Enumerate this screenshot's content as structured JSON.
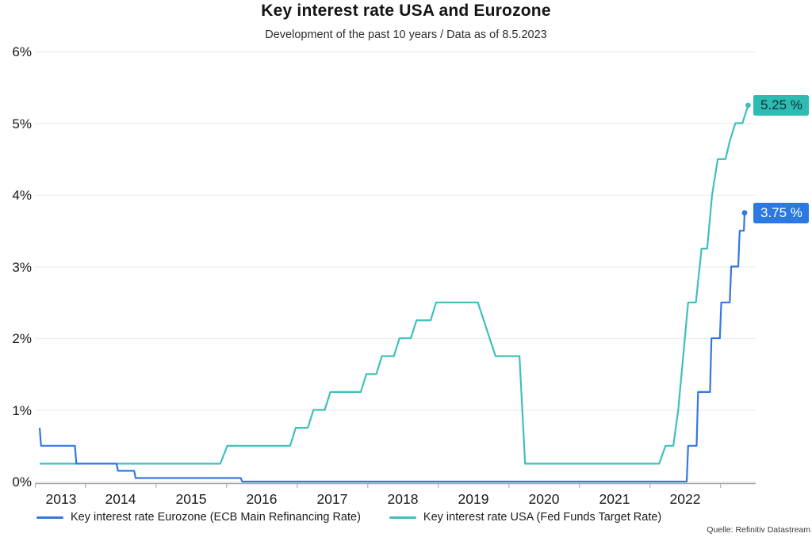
{
  "header": {
    "title": "Key interest rate USA and Eurozone",
    "subtitle": "Development of the past 10 years / Data as of 8.5.2023"
  },
  "source_note": "Quelle: Refinitiv Datastream",
  "chart_data": {
    "type": "line",
    "title": "Key interest rate USA and Eurozone",
    "subtitle": "Development of the past 10 years / Data as of 8.5.2023",
    "grid": "horizontal",
    "legend_position": "bottom",
    "x_axis": {
      "range": [
        2013.35,
        2023.52
      ],
      "tick_years": [
        2014,
        2015,
        2016,
        2017,
        2018,
        2019,
        2020,
        2021,
        2022,
        2023
      ],
      "label_years": [
        2013,
        2014,
        2015,
        2016,
        2017,
        2018,
        2019,
        2020,
        2021,
        2022
      ],
      "labels": [
        "2013",
        "2014",
        "2015",
        "2016",
        "2017",
        "2018",
        "2019",
        "2020",
        "2021",
        "2022"
      ]
    },
    "y_axis": {
      "range": [
        0,
        6
      ],
      "ticks": [
        0,
        1,
        2,
        3,
        4,
        5,
        6
      ],
      "tick_labels": [
        "0%",
        "1%",
        "2%",
        "3%",
        "4%",
        "5%",
        "6%"
      ],
      "unit": "%"
    },
    "series": [
      {
        "id": "eurozone",
        "name": "Key interest rate Eurozone (ECB Main Refinancing Rate)",
        "color": "#3577e2",
        "end_value": 3.75,
        "end_label": "3.75 %",
        "end_label_bg": "#2c79e3",
        "end_label_color": "#ffffff",
        "points": [
          [
            2013.35,
            0.75
          ],
          [
            2013.37,
            0.5
          ],
          [
            2013.85,
            0.5
          ],
          [
            2013.87,
            0.25
          ],
          [
            2014.44,
            0.25
          ],
          [
            2014.46,
            0.15
          ],
          [
            2014.69,
            0.15
          ],
          [
            2014.71,
            0.05
          ],
          [
            2016.2,
            0.05
          ],
          [
            2016.22,
            0.0
          ],
          [
            2022.52,
            0.0
          ],
          [
            2022.54,
            0.5
          ],
          [
            2022.66,
            0.5
          ],
          [
            2022.68,
            1.25
          ],
          [
            2022.85,
            1.25
          ],
          [
            2022.87,
            2.0
          ],
          [
            2022.99,
            2.0
          ],
          [
            2023.01,
            2.5
          ],
          [
            2023.13,
            2.5
          ],
          [
            2023.15,
            3.0
          ],
          [
            2023.25,
            3.0
          ],
          [
            2023.27,
            3.5
          ],
          [
            2023.33,
            3.5
          ],
          [
            2023.34,
            3.75
          ]
        ]
      },
      {
        "id": "usa",
        "name": "Key interest rate USA (Fed Funds Target Rate)",
        "color": "#3fbfbc",
        "end_value": 5.25,
        "end_label": "5.25 %",
        "end_label_bg": "#2dbcb2",
        "end_label_color": "#0b2f33",
        "points": [
          [
            2013.35,
            0.25
          ],
          [
            2015.91,
            0.25
          ],
          [
            2016.01,
            0.5
          ],
          [
            2016.9,
            0.5
          ],
          [
            2016.98,
            0.75
          ],
          [
            2017.15,
            0.75
          ],
          [
            2017.23,
            1.0
          ],
          [
            2017.39,
            1.0
          ],
          [
            2017.47,
            1.25
          ],
          [
            2017.9,
            1.25
          ],
          [
            2017.98,
            1.5
          ],
          [
            2018.12,
            1.5
          ],
          [
            2018.2,
            1.75
          ],
          [
            2018.37,
            1.75
          ],
          [
            2018.45,
            2.0
          ],
          [
            2018.61,
            2.0
          ],
          [
            2018.69,
            2.25
          ],
          [
            2018.89,
            2.25
          ],
          [
            2018.97,
            2.5
          ],
          [
            2019.56,
            2.5
          ],
          [
            2019.81,
            1.75
          ],
          [
            2020.15,
            1.75
          ],
          [
            2020.23,
            0.25
          ],
          [
            2022.13,
            0.25
          ],
          [
            2022.22,
            0.5
          ],
          [
            2022.33,
            0.5
          ],
          [
            2022.4,
            1.0
          ],
          [
            2022.47,
            1.75
          ],
          [
            2022.54,
            2.5
          ],
          [
            2022.65,
            2.5
          ],
          [
            2022.73,
            3.25
          ],
          [
            2022.81,
            3.25
          ],
          [
            2022.88,
            4.0
          ],
          [
            2022.96,
            4.5
          ],
          [
            2023.07,
            4.5
          ],
          [
            2023.13,
            4.75
          ],
          [
            2023.21,
            5.0
          ],
          [
            2023.31,
            5.0
          ],
          [
            2023.39,
            5.25
          ]
        ]
      }
    ]
  }
}
